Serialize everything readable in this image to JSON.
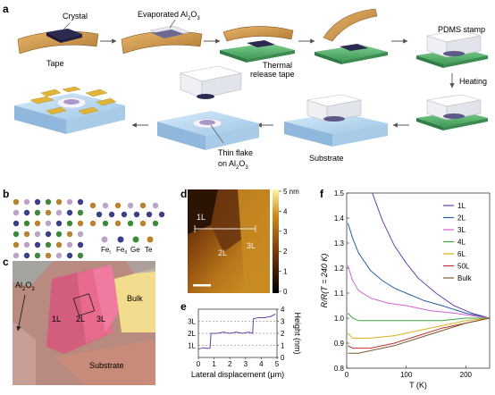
{
  "panel_labels": {
    "a": "a",
    "b": "b",
    "c": "c",
    "d": "d",
    "e": "e",
    "f": "f"
  },
  "panel_a": {
    "crystal": "Crystal",
    "tape": "Tape",
    "evaporated": "Evaporated Al",
    "evaporated_sub": "2",
    "evaporated_tail": "O",
    "evaporated_sub2": "3",
    "thermal_line1": "Thermal",
    "thermal_line2": "release tape",
    "pdms": "PDMS stamp",
    "heating": "Heating",
    "substrate": "Substrate",
    "thin_flake_line1": "Thin flake",
    "thin_flake_line2": "on Al",
    "thin_flake_sub": "2",
    "thin_flake_tail": "O",
    "thin_flake_sub2": "3"
  },
  "panel_b": {
    "legend": [
      {
        "symbol": "Fe",
        "sub": "I",
        "color": "#b9a3c8"
      },
      {
        "symbol": "Fe",
        "sub": "II",
        "color": "#3a3f86"
      },
      {
        "symbol": "Ge",
        "sub": "",
        "color": "#3b8a3a"
      },
      {
        "symbol": "Te",
        "sub": "",
        "color": "#b9812a"
      }
    ]
  },
  "panel_c": {
    "al2o3": "Al",
    "al2o3_sub": "2",
    "al2o3_tail": "O",
    "al2o3_sub2": "3",
    "l1": "1L",
    "l2": "2L",
    "l3": "3L",
    "bulk": "Bulk",
    "substrate": "Substrate"
  },
  "panel_d": {
    "l1": "1L",
    "l2": "2L",
    "l3": "3L",
    "colorbar_ticks": [
      "5 nm",
      "4",
      "3",
      "2",
      "1",
      "0"
    ]
  },
  "panel_e": {
    "chart_data": {
      "type": "line",
      "xlabel": "Lateral displacement (μm)",
      "ylabel": "Height (nm)",
      "xlim": [
        0,
        5
      ],
      "ylim": [
        0,
        4
      ],
      "x_ticks": [
        "0",
        "1",
        "2",
        "3",
        "4",
        "5"
      ],
      "y_ticks": [
        "0",
        "1",
        "2",
        "3",
        "4"
      ],
      "layer_levels": [
        "1L",
        "2L",
        "3L"
      ],
      "x": [
        0.0,
        0.3,
        0.6,
        0.75,
        0.8,
        1.2,
        1.6,
        2.0,
        2.4,
        2.8,
        3.2,
        3.45,
        3.5,
        3.8,
        4.2,
        4.6,
        4.9
      ],
      "y": [
        0.7,
        0.8,
        0.75,
        0.8,
        2.0,
        2.0,
        2.1,
        2.0,
        2.1,
        2.0,
        2.1,
        2.0,
        3.2,
        3.3,
        3.3,
        3.4,
        3.6
      ]
    }
  },
  "panel_f": {
    "chart_data": {
      "type": "line",
      "xlabel": "T (K)",
      "ylabel": "R/R(T = 240 K)",
      "xlim": [
        0,
        240
      ],
      "ylim": [
        0.8,
        1.5
      ],
      "x_ticks": [
        "0",
        "100",
        "200"
      ],
      "y_ticks": [
        "0.8",
        "0.9",
        "1.0",
        "1.1",
        "1.2",
        "1.3",
        "1.4",
        "1.5"
      ],
      "series": [
        {
          "name": "1L",
          "color": "#6a3fa8",
          "T": [
            40,
            60,
            80,
            100,
            120,
            150,
            180,
            210,
            240
          ],
          "R": [
            1.52,
            1.39,
            1.29,
            1.22,
            1.16,
            1.1,
            1.05,
            1.02,
            1.0
          ]
        },
        {
          "name": "2L",
          "color": "#2a5fa8",
          "T": [
            2,
            10,
            20,
            40,
            60,
            80,
            100,
            130,
            160,
            200,
            240
          ],
          "R": [
            1.38,
            1.32,
            1.26,
            1.19,
            1.15,
            1.12,
            1.1,
            1.07,
            1.05,
            1.02,
            1.0
          ]
        },
        {
          "name": "3L",
          "color": "#d060d0",
          "T": [
            2,
            10,
            20,
            40,
            70,
            100,
            140,
            180,
            240
          ],
          "R": [
            1.21,
            1.15,
            1.11,
            1.08,
            1.06,
            1.05,
            1.03,
            1.02,
            1.0
          ]
        },
        {
          "name": "4L",
          "color": "#40a040",
          "T": [
            2,
            10,
            20,
            40,
            80,
            120,
            160,
            200,
            240
          ],
          "R": [
            1.02,
            1.0,
            0.99,
            0.99,
            0.99,
            0.99,
            0.99,
            1.0,
            1.0
          ]
        },
        {
          "name": "6L",
          "color": "#d8b020",
          "T": [
            2,
            10,
            20,
            40,
            80,
            120,
            160,
            200,
            240
          ],
          "R": [
            0.94,
            0.92,
            0.92,
            0.92,
            0.93,
            0.95,
            0.97,
            0.99,
            1.0
          ]
        },
        {
          "name": "50L",
          "color": "#c03030",
          "T": [
            2,
            10,
            20,
            40,
            80,
            120,
            160,
            200,
            240
          ],
          "R": [
            0.89,
            0.88,
            0.88,
            0.88,
            0.9,
            0.93,
            0.96,
            0.98,
            1.0
          ]
        },
        {
          "name": "Bulk",
          "color": "#7a5a30",
          "T": [
            2,
            10,
            20,
            40,
            80,
            120,
            160,
            200,
            240
          ],
          "R": [
            0.86,
            0.86,
            0.86,
            0.87,
            0.89,
            0.92,
            0.95,
            0.98,
            1.0
          ]
        }
      ]
    }
  }
}
